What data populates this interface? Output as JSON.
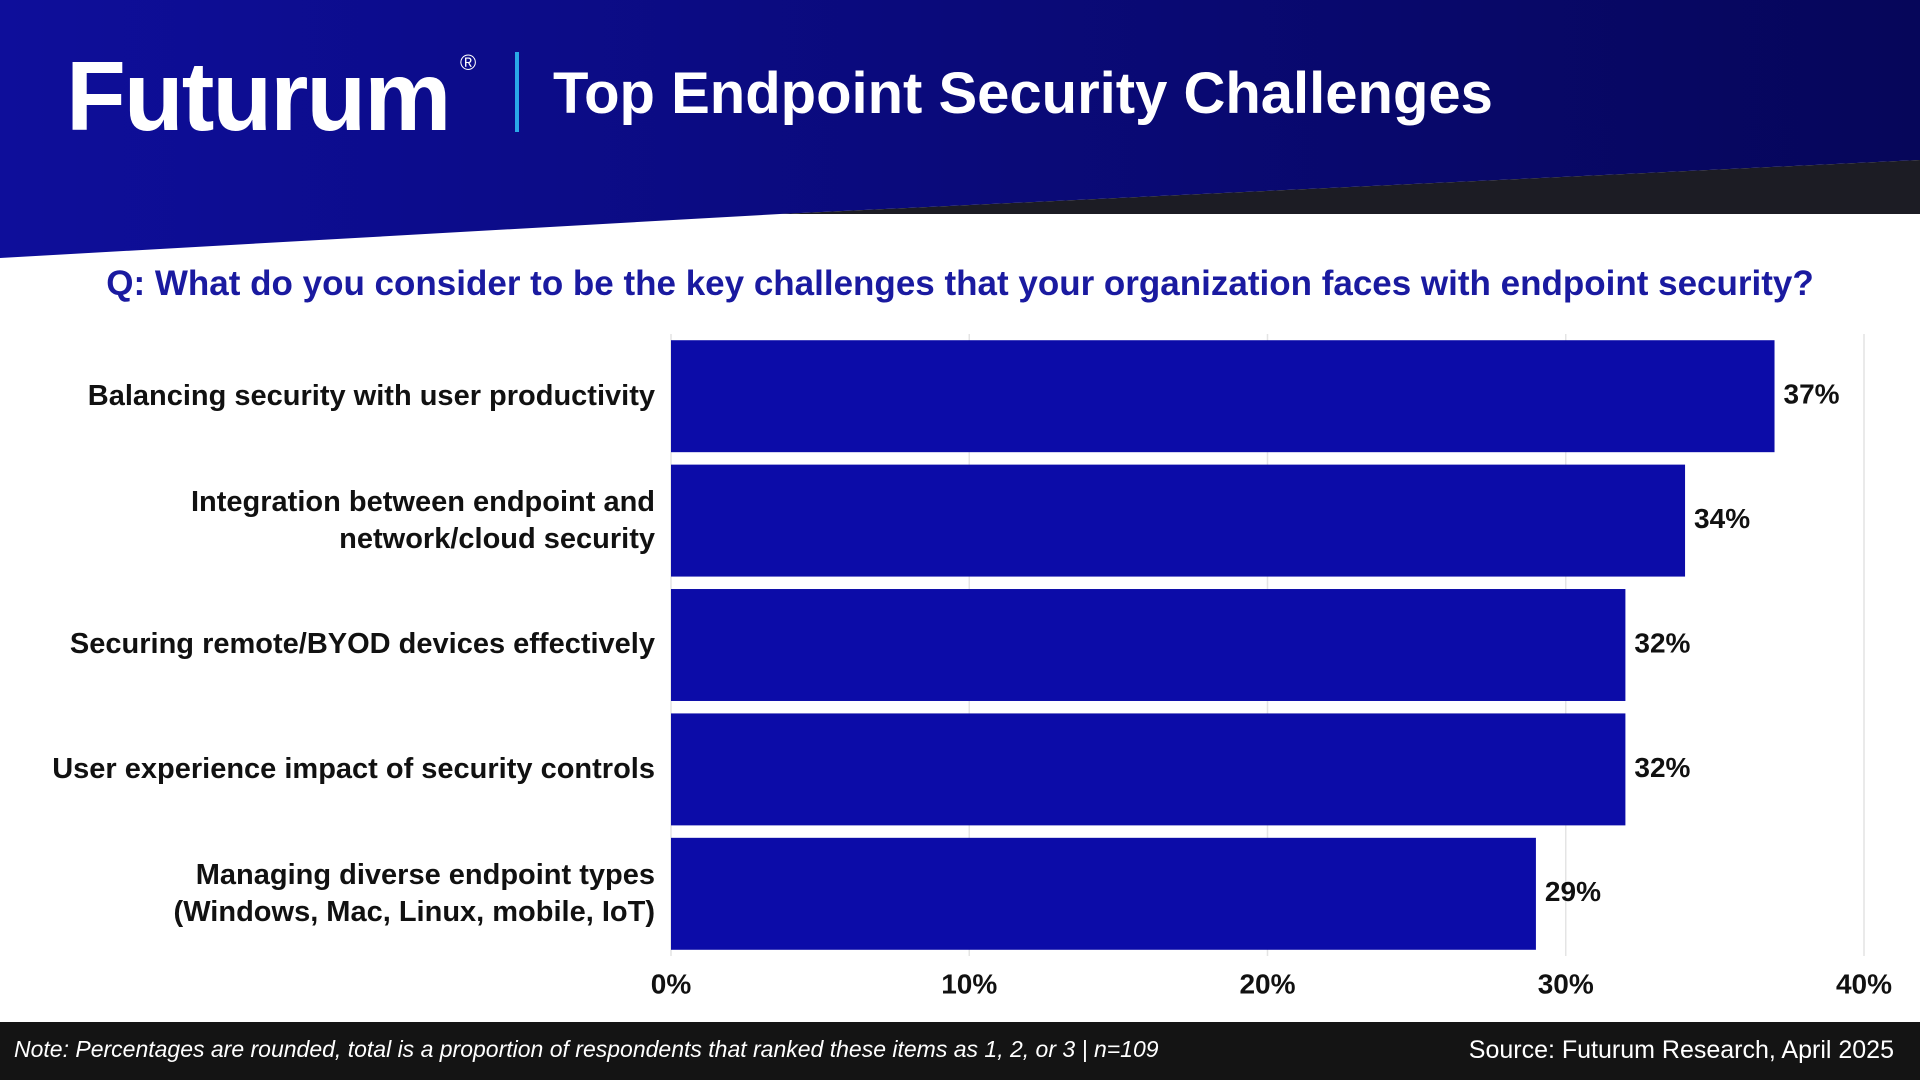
{
  "brand": "Futurum",
  "brand_mark": "®",
  "chart_data": {
    "type": "bar",
    "orientation": "horizontal",
    "title": "Top Endpoint Security Challenges",
    "subtitle": "Q: What do you consider to be the key challenges that your organization faces with endpoint security?",
    "categories": [
      "Balancing security with user productivity",
      "Integration between endpoint and\nnetwork/cloud security",
      "Securing remote/BYOD devices effectively",
      "User experience impact of security controls",
      "Managing diverse endpoint types\n(Windows, Mac, Linux, mobile, IoT)"
    ],
    "values": [
      37,
      34,
      32,
      32,
      29
    ],
    "value_labels": [
      "37%",
      "34%",
      "32%",
      "32%",
      "29%"
    ],
    "color": "#0c0ca8",
    "xlim": [
      0,
      40
    ],
    "xticks": [
      {
        "value": 0,
        "label": "0%"
      },
      {
        "value": 10,
        "label": "10%"
      },
      {
        "value": 20,
        "label": "20%"
      },
      {
        "value": 30,
        "label": "30%"
      },
      {
        "value": 40,
        "label": "40%"
      }
    ],
    "grid": true
  },
  "footer": {
    "note": "Note: Percentages are rounded, total is a proportion of respondents that ranked these items as 1, 2, or 3 | n=109",
    "source": "Source: Futurum Research, April 2025"
  }
}
